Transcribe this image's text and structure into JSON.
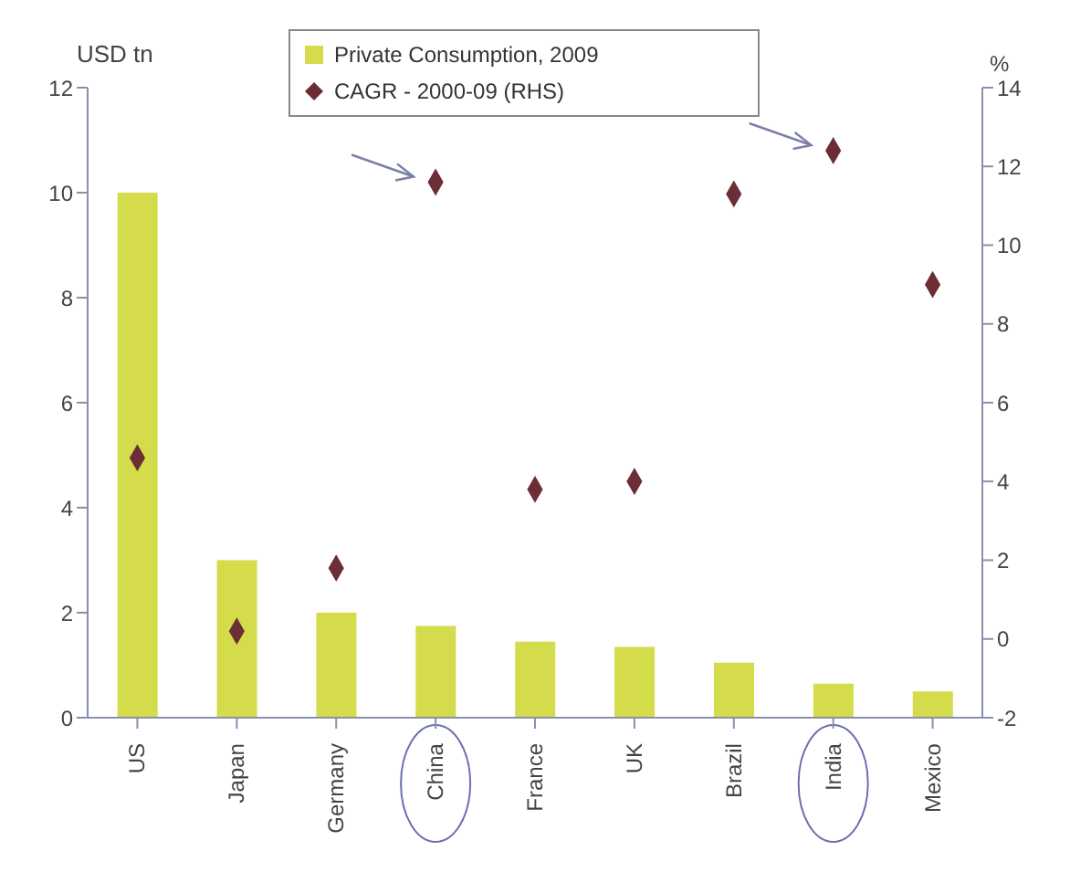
{
  "chart_data": {
    "type": "bar",
    "ylabel": "USD tn",
    "y2label": "%",
    "categories": [
      "US",
      "Japan",
      "Germany",
      "China",
      "France",
      "UK",
      "Brazil",
      "India",
      "Mexico"
    ],
    "series": [
      {
        "name": "Private Consumption, 2009",
        "color": "#d4dc4c",
        "values": [
          10,
          3,
          2,
          1.75,
          1.45,
          1.35,
          1.05,
          0.65,
          0.5
        ]
      },
      {
        "name": "CAGR - 2000-09 (RHS)",
        "type": "scatter",
        "axis": "y2",
        "marker": "diamond",
        "color": "#6b2e36",
        "values": [
          4.6,
          0.2,
          1.8,
          11.6,
          3.8,
          4.0,
          11.3,
          12.4,
          9.0
        ]
      }
    ],
    "ylim": [
      0,
      12
    ],
    "yticks": [
      0,
      2,
      4,
      6,
      8,
      10,
      12
    ],
    "y2lim": [
      -2,
      14
    ],
    "y2ticks": [
      -2,
      0,
      2,
      4,
      6,
      8,
      10,
      12,
      14
    ],
    "grid": false,
    "legend": "top"
  }
}
